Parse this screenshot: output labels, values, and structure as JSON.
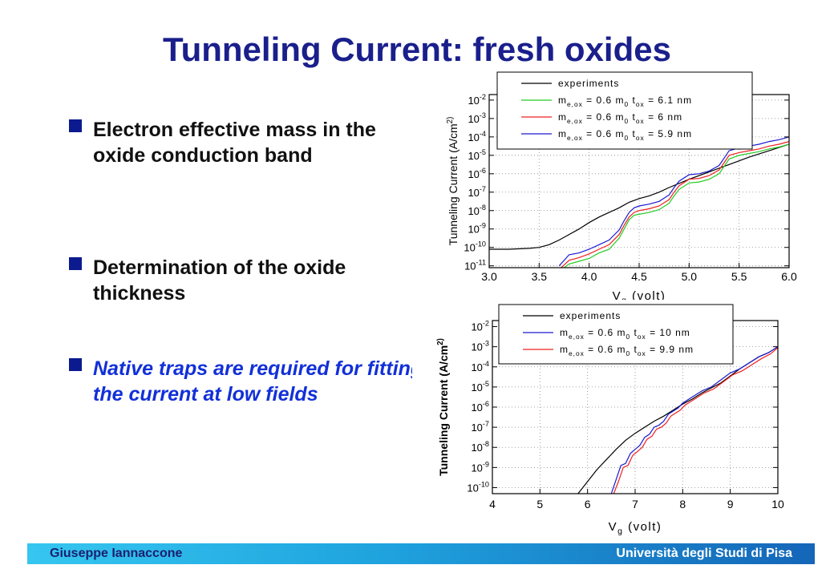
{
  "slide": {
    "title": "Tunneling Current: fresh oxides",
    "bullets": [
      "Electron effective mass in the oxide conduction band",
      "Determination of the oxide thickness",
      "Native traps are required for fitting the current at low fields"
    ],
    "footer_left": "Giuseppe Iannaccone",
    "footer_right": "Università degli Studi di Pisa"
  },
  "colors": {
    "title": "#1a1f8c",
    "bullet_marker": "#0b1b8f",
    "highlight_text": "#1230d8",
    "exp": "#000000",
    "green": "#22cc22",
    "red": "#ee2020",
    "blue": "#1a1ad0"
  },
  "chart_data": [
    {
      "type": "line",
      "title": "",
      "xlabel": "V_g (volt)",
      "ylabel": "Tunneling Current (A/cm^2)",
      "x_ticks": [
        "3.0",
        "3.5",
        "4.0",
        "4.5",
        "5.0",
        "5.5",
        "6.0"
      ],
      "y_ticks": [
        "10^-2",
        "10^-3",
        "10^-4",
        "10^-5",
        "10^-6",
        "10^-7",
        "10^-8",
        "10^-9",
        "10^-10",
        "10^-11"
      ],
      "xlim": [
        3.0,
        6.0
      ],
      "ylim_log10": [
        -11.1,
        -1.7
      ],
      "scale_y": "log",
      "grid": true,
      "legend_position": "top",
      "series": [
        {
          "name": "experiments",
          "color": "#000000",
          "x": [
            3.0,
            3.2,
            3.4,
            3.5,
            3.6,
            3.7,
            3.8,
            3.9,
            4.0,
            4.1,
            4.2,
            4.3,
            4.4,
            4.5,
            4.6,
            4.7,
            4.8,
            5.0,
            5.2,
            5.4,
            5.6,
            5.8,
            6.0
          ],
          "y_log10": [
            -10.1,
            -10.1,
            -10.05,
            -10.0,
            -9.85,
            -9.6,
            -9.3,
            -9.0,
            -8.65,
            -8.35,
            -8.1,
            -7.85,
            -7.55,
            -7.35,
            -7.2,
            -7.0,
            -6.75,
            -6.3,
            -5.9,
            -5.5,
            -5.1,
            -4.75,
            -4.4
          ]
        },
        {
          "name": "m_e,ox = 0.6 m_0 t_ox = 6.1 nm",
          "color": "#22cc22",
          "x": [
            3.75,
            3.8,
            3.9,
            4.0,
            4.1,
            4.2,
            4.3,
            4.35,
            4.4,
            4.45,
            4.5,
            4.6,
            4.7,
            4.8,
            4.85,
            4.9,
            5.0,
            5.1,
            5.2,
            5.3,
            5.35,
            5.4,
            5.5,
            5.6,
            5.7,
            5.8,
            5.9,
            6.0
          ],
          "y_log10": [
            -11.1,
            -10.9,
            -10.75,
            -10.6,
            -10.3,
            -10.1,
            -9.5,
            -9.0,
            -8.5,
            -8.25,
            -8.2,
            -8.1,
            -7.95,
            -7.6,
            -7.2,
            -6.85,
            -6.5,
            -6.45,
            -6.3,
            -6.0,
            -5.6,
            -5.2,
            -5.0,
            -4.9,
            -4.8,
            -4.65,
            -4.55,
            -4.4
          ]
        },
        {
          "name": "m_e,ox = 0.6 m_0 t_ox = 6 nm",
          "color": "#ee2020",
          "x": [
            3.72,
            3.8,
            3.9,
            4.0,
            4.1,
            4.2,
            4.3,
            4.35,
            4.4,
            4.45,
            4.5,
            4.6,
            4.7,
            4.8,
            4.85,
            4.9,
            5.0,
            5.1,
            5.2,
            5.3,
            5.35,
            5.4,
            5.5,
            5.6,
            5.7,
            5.8,
            5.9,
            6.0
          ],
          "y_log10": [
            -11.1,
            -10.7,
            -10.55,
            -10.35,
            -10.1,
            -9.85,
            -9.3,
            -8.8,
            -8.35,
            -8.1,
            -8.0,
            -7.9,
            -7.75,
            -7.4,
            -7.0,
            -6.65,
            -6.3,
            -6.25,
            -6.1,
            -5.8,
            -5.4,
            -5.0,
            -4.85,
            -4.75,
            -4.65,
            -4.5,
            -4.4,
            -4.25
          ]
        },
        {
          "name": "m_e,ox = 0.6 m_0 t_ox = 5.9 nm",
          "color": "#1a1ad0",
          "x": [
            3.7,
            3.8,
            3.9,
            4.0,
            4.1,
            4.2,
            4.3,
            4.35,
            4.4,
            4.45,
            4.5,
            4.6,
            4.7,
            4.8,
            4.85,
            4.9,
            5.0,
            5.1,
            5.2,
            5.3,
            5.35,
            5.4,
            5.5,
            5.6,
            5.7,
            5.8,
            5.9,
            6.0
          ],
          "y_log10": [
            -11.0,
            -10.4,
            -10.3,
            -10.1,
            -9.85,
            -9.6,
            -9.05,
            -8.55,
            -8.1,
            -7.85,
            -7.75,
            -7.65,
            -7.5,
            -7.15,
            -6.75,
            -6.4,
            -6.05,
            -6.0,
            -5.85,
            -5.55,
            -5.15,
            -4.75,
            -4.6,
            -4.5,
            -4.4,
            -4.25,
            -4.15,
            -4.0
          ]
        }
      ]
    },
    {
      "type": "line",
      "title": "",
      "xlabel": "V_g (volt)",
      "ylabel": "Tunneling Current (A/cm^2)",
      "x_ticks": [
        "4",
        "5",
        "6",
        "7",
        "8",
        "9",
        "10"
      ],
      "y_ticks": [
        "10^-2",
        "10^-3",
        "10^-4",
        "10^-5",
        "10^-6",
        "10^-7",
        "10^-8",
        "10^-9",
        "10^-10"
      ],
      "xlim": [
        4,
        10
      ],
      "ylim_log10": [
        -10.3,
        -1.7
      ],
      "scale_y": "log",
      "grid": true,
      "legend_position": "top",
      "series": [
        {
          "name": "experiments",
          "color": "#000000",
          "x": [
            5.8,
            6.0,
            6.2,
            6.4,
            6.6,
            6.8,
            7.0,
            7.2,
            7.4,
            7.6,
            7.8,
            8.0,
            8.2,
            8.4,
            8.6,
            8.8,
            9.0,
            9.2,
            9.4,
            9.6,
            9.8,
            10.0
          ],
          "y_log10": [
            -10.3,
            -9.7,
            -9.1,
            -8.6,
            -8.1,
            -7.65,
            -7.3,
            -7.0,
            -6.7,
            -6.45,
            -6.15,
            -5.85,
            -5.6,
            -5.3,
            -5.05,
            -4.8,
            -4.45,
            -4.1,
            -3.8,
            -3.5,
            -3.3,
            -3.0
          ]
        },
        {
          "name": "m_e,ox = 0.6 m_0 t_ox = 10 nm",
          "color": "#1a1ad0",
          "x": [
            6.5,
            6.6,
            6.7,
            6.8,
            6.9,
            7.0,
            7.1,
            7.2,
            7.3,
            7.4,
            7.5,
            7.6,
            7.7,
            7.8,
            7.9,
            8.0,
            8.2,
            8.4,
            8.6,
            8.8,
            9.0,
            9.2,
            9.4,
            9.6,
            9.8,
            10.0
          ],
          "y_log10": [
            -10.3,
            -9.6,
            -8.9,
            -8.8,
            -8.3,
            -8.1,
            -7.9,
            -7.5,
            -7.35,
            -7.0,
            -6.9,
            -6.7,
            -6.35,
            -6.2,
            -6.05,
            -5.8,
            -5.5,
            -5.2,
            -5.0,
            -4.65,
            -4.3,
            -4.1,
            -3.8,
            -3.5,
            -3.3,
            -3.0
          ]
        },
        {
          "name": "m_e,ox = 0.6 m_0 t_ox = 9.9 nm",
          "color": "#ee2020",
          "x": [
            6.55,
            6.65,
            6.75,
            6.85,
            6.95,
            7.05,
            7.15,
            7.25,
            7.35,
            7.45,
            7.55,
            7.65,
            7.75,
            7.85,
            7.95,
            8.05,
            8.25,
            8.45,
            8.65,
            8.85,
            9.05,
            9.25,
            9.45,
            9.65,
            9.85,
            10.0
          ],
          "y_log10": [
            -10.3,
            -9.7,
            -9.0,
            -8.9,
            -8.4,
            -8.2,
            -8.0,
            -7.6,
            -7.45,
            -7.1,
            -7.0,
            -6.8,
            -6.45,
            -6.3,
            -6.15,
            -5.9,
            -5.6,
            -5.3,
            -5.1,
            -4.75,
            -4.4,
            -4.2,
            -3.9,
            -3.6,
            -3.35,
            -3.05
          ]
        }
      ]
    }
  ]
}
